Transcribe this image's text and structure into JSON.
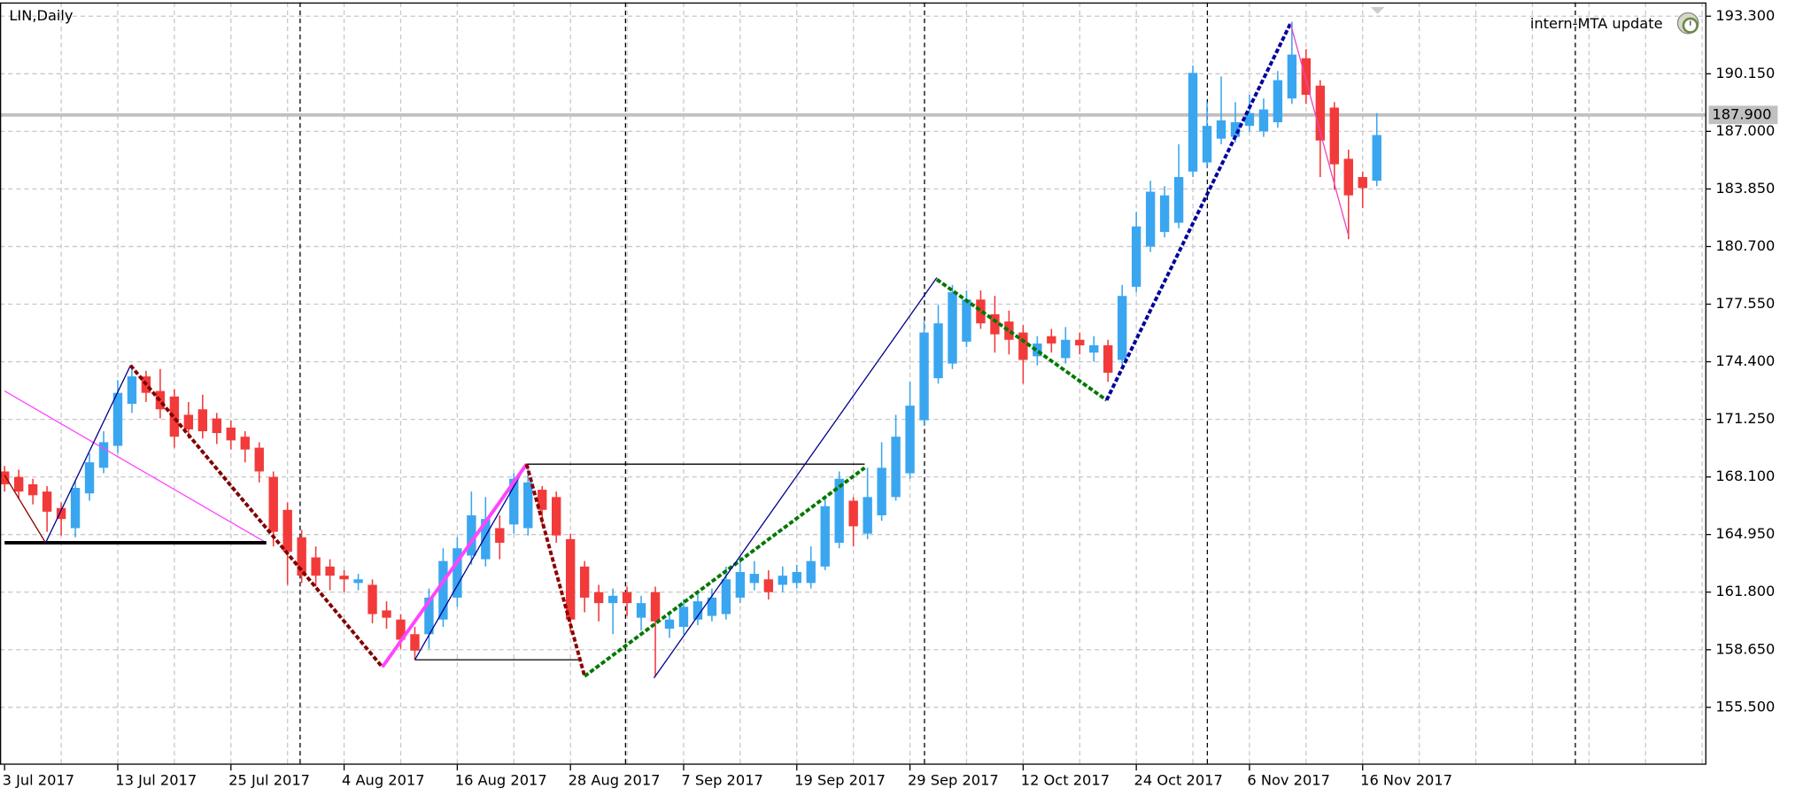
{
  "chart_data": {
    "type": "candlestick",
    "title": "LIN,Daily",
    "indicator_label": "intern-MTA update",
    "up_color": "#3aa6f0",
    "down_color": "#f23a3a",
    "grid": true,
    "xlim": [
      -0.325,
      120.3
    ],
    "ylim": [
      152.36,
      194.05
    ],
    "yticks": [
      {
        "value": 193.3,
        "label": "193.300"
      },
      {
        "value": 190.15,
        "label": "190.150"
      },
      {
        "value": 187,
        "label": "187.000"
      },
      {
        "value": 183.85,
        "label": "183.850"
      },
      {
        "value": 180.7,
        "label": "180.700"
      },
      {
        "value": 177.55,
        "label": "177.550"
      },
      {
        "value": 174.4,
        "label": "174.400"
      },
      {
        "value": 171.25,
        "label": "171.250"
      },
      {
        "value": 168.1,
        "label": "168.100"
      },
      {
        "value": 164.95,
        "label": "164.950"
      },
      {
        "value": 161.8,
        "label": "161.800"
      },
      {
        "value": 158.65,
        "label": "158.650"
      },
      {
        "value": 155.5,
        "label": "155.500"
      }
    ],
    "xticks": [
      {
        "value": 0,
        "label": "3 Jul 2017"
      },
      {
        "value": 8,
        "label": "13 Jul 2017"
      },
      {
        "value": 16,
        "label": "25 Jul 2017"
      },
      {
        "value": 24,
        "label": "4 Aug 2017"
      },
      {
        "value": 32,
        "label": "16 Aug 2017"
      },
      {
        "value": 40,
        "label": "28 Aug 2017"
      },
      {
        "value": 48,
        "label": "7 Sep 2017"
      },
      {
        "value": 56,
        "label": "19 Sep 2017"
      },
      {
        "value": 64,
        "label": "29 Sep 2017"
      },
      {
        "value": 72,
        "label": "12 Oct 2017"
      },
      {
        "value": 80,
        "label": "24 Oct 2017"
      },
      {
        "value": 88,
        "label": "6 Nov 2017"
      },
      {
        "value": 96,
        "label": "16 Nov 2017"
      }
    ],
    "last_price": {
      "value": 187.9,
      "label": "187.900"
    },
    "open": [
      168.4,
      168.1,
      167.7,
      167.3,
      166.4,
      165.3,
      167.2,
      168.6,
      169.8,
      172.1,
      173.6,
      172.8,
      172.5,
      171.5,
      171.8,
      171.3,
      170.8,
      170.3,
      169.7,
      168.1,
      166.3,
      164.8,
      163.7,
      163.2,
      162.7,
      162.3,
      162.2,
      160.8,
      160.3,
      159.5,
      159.5,
      160.3,
      161.5,
      163.8,
      163.6,
      165.3,
      165.5,
      165.3,
      167.4,
      167.0,
      164.7,
      163.2,
      161.8,
      161.2,
      161.8,
      160.4,
      161.8,
      159.8,
      159.9,
      160.3,
      160.5,
      160.6,
      161.5,
      162.3,
      162.5,
      162.2,
      162.3,
      162.3,
      163.2,
      164.5,
      166.8,
      165.0,
      166.0,
      167.0,
      168.3,
      171.2,
      173.5,
      174.3,
      175.5,
      177.8,
      177.0,
      176.6,
      176.0,
      174.7,
      175.8,
      174.6,
      175.6,
      174.9,
      175.3,
      174.5,
      178.5,
      180.7,
      181.5,
      182.0,
      184.8,
      185.3,
      186.6,
      186.7,
      187.3,
      187.0,
      187.5,
      188.8,
      191.0,
      189.5,
      188.3,
      185.5,
      184.5,
      184.3
    ],
    "high": [
      168.7,
      168.5,
      168.0,
      167.6,
      166.7,
      167.9,
      169.4,
      170.6,
      173.4,
      174.1,
      173.9,
      174.0,
      172.9,
      172.2,
      172.6,
      171.6,
      171.2,
      170.6,
      170.0,
      168.4,
      166.7,
      165.2,
      164.3,
      163.6,
      163.0,
      162.8,
      162.5,
      161.3,
      160.6,
      159.9,
      162.0,
      164.2,
      164.8,
      167.3,
      167.0,
      166.0,
      168.3,
      168.6,
      167.6,
      167.3,
      165.0,
      163.5,
      162.2,
      162.0,
      162.1,
      161.6,
      162.1,
      160.7,
      161.4,
      161.8,
      162.0,
      163.2,
      163.8,
      163.5,
      163.0,
      163.2,
      163.3,
      164.3,
      167.0,
      168.4,
      167.0,
      168.6,
      170.0,
      171.5,
      173.3,
      176.6,
      177.5,
      178.6,
      178.3,
      178.3,
      178.0,
      177.2,
      176.4,
      175.8,
      176.2,
      176.3,
      176.0,
      175.8,
      175.6,
      178.6,
      182.6,
      184.3,
      184.0,
      186.3,
      190.6,
      188.6,
      190.0,
      188.6,
      189.0,
      188.8,
      190.3,
      193.0,
      191.5,
      189.8,
      188.6,
      186.0,
      184.8,
      188.0
    ],
    "low": [
      167.3,
      166.9,
      166.6,
      165.1,
      164.9,
      164.8,
      166.8,
      168.3,
      169.4,
      171.6,
      172.2,
      171.3,
      169.7,
      170.2,
      170.2,
      169.9,
      169.6,
      168.9,
      167.8,
      164.3,
      162.2,
      162.3,
      162.1,
      161.9,
      161.8,
      161.9,
      160.1,
      159.8,
      158.7,
      158.1,
      158.7,
      159.9,
      161.0,
      163.3,
      163.2,
      163.6,
      165.0,
      164.9,
      165.5,
      164.5,
      159.6,
      160.7,
      160.2,
      159.5,
      160.5,
      159.7,
      157.2,
      159.3,
      159.5,
      160.0,
      160.2,
      160.3,
      161.2,
      161.9,
      161.4,
      161.8,
      162.0,
      162.0,
      163.0,
      164.2,
      164.3,
      164.7,
      165.7,
      166.8,
      168.0,
      170.9,
      173.2,
      174.0,
      175.2,
      176.2,
      174.9,
      174.8,
      173.2,
      174.2,
      174.9,
      174.3,
      174.8,
      174.4,
      173.3,
      174.2,
      178.2,
      180.4,
      181.2,
      181.7,
      184.5,
      185.0,
      186.3,
      186.4,
      187.0,
      186.7,
      187.2,
      188.5,
      188.5,
      184.5,
      183.8,
      181.1,
      182.8,
      184.0
    ],
    "close": [
      167.7,
      167.3,
      167.1,
      166.2,
      165.8,
      167.5,
      168.9,
      170.0,
      172.7,
      173.6,
      172.7,
      171.8,
      170.3,
      170.7,
      170.6,
      170.5,
      170.1,
      169.6,
      168.4,
      165.1,
      164.0,
      162.7,
      162.7,
      162.7,
      162.5,
      162.5,
      160.6,
      160.4,
      159.2,
      158.6,
      161.5,
      163.5,
      164.2,
      166.0,
      165.8,
      164.5,
      168.0,
      167.8,
      166.3,
      164.9,
      160.3,
      161.5,
      161.2,
      161.6,
      161.2,
      161.2,
      160.2,
      160.3,
      161.0,
      161.3,
      161.5,
      162.5,
      162.9,
      162.8,
      161.8,
      162.7,
      162.9,
      163.5,
      166.5,
      168.0,
      165.4,
      167.0,
      168.6,
      170.3,
      172.0,
      176.0,
      176.5,
      178.2,
      177.8,
      176.5,
      175.9,
      175.6,
      174.5,
      175.4,
      175.4,
      175.6,
      175.3,
      175.3,
      173.8,
      178.0,
      181.8,
      183.7,
      183.5,
      184.5,
      190.2,
      187.3,
      187.6,
      187.5,
      188.0,
      188.2,
      189.8,
      191.2,
      189.0,
      186.5,
      185.2,
      183.5,
      183.9,
      186.8
    ],
    "overlays": [
      {
        "color": "#ff44ff",
        "style": "thin",
        "points": [
          [
            0,
            172.8
          ],
          [
            18.5,
            164.5
          ]
        ]
      },
      {
        "color": "#000000",
        "style": "thick",
        "points": [
          [
            0,
            164.5
          ],
          [
            18.5,
            164.5
          ]
        ]
      },
      {
        "color": "#8b0000",
        "style": "thin",
        "points": [
          [
            0,
            168.2
          ],
          [
            2.9,
            164.5
          ]
        ]
      },
      {
        "color": "#00008b",
        "style": "thin",
        "points": [
          [
            2.9,
            164.5
          ],
          [
            8.9,
            174.2
          ]
        ]
      },
      {
        "color": "#800000",
        "style": "dashed",
        "points": [
          [
            8.9,
            174.2
          ],
          [
            26.7,
            157.7
          ]
        ]
      },
      {
        "color": "#000000",
        "style": "thin",
        "points": [
          [
            29,
            158.1
          ],
          [
            40.7,
            158.1
          ]
        ]
      },
      {
        "color": "#00008b",
        "style": "thin",
        "points": [
          [
            29,
            158.1
          ],
          [
            36.9,
            168.8
          ]
        ]
      },
      {
        "color": "#ff44ff",
        "style": "thick",
        "points": [
          [
            26.7,
            157.7
          ],
          [
            36.9,
            168.8
          ]
        ]
      },
      {
        "color": "#000000",
        "style": "thin",
        "points": [
          [
            36.9,
            168.8
          ],
          [
            60.8,
            168.8
          ]
        ]
      },
      {
        "color": "#8b0000",
        "style": "dashed",
        "points": [
          [
            36.9,
            168.8
          ],
          [
            41,
            157.2
          ]
        ]
      },
      {
        "color": "#007700",
        "style": "dashed",
        "points": [
          [
            41,
            157.2
          ],
          [
            60.8,
            168.6
          ]
        ]
      },
      {
        "color": "#00008b",
        "style": "thin",
        "points": [
          [
            45.9,
            157.1
          ],
          [
            65.9,
            179.0
          ]
        ]
      },
      {
        "color": "#007700",
        "style": "dashed",
        "points": [
          [
            65.9,
            178.9
          ],
          [
            77.9,
            172.3
          ]
        ]
      },
      {
        "color": "#000099",
        "style": "dashed",
        "points": [
          [
            77.9,
            172.3
          ],
          [
            90.9,
            192.9
          ]
        ]
      },
      {
        "color": "#ee44bb",
        "style": "thin",
        "points": [
          [
            90.9,
            192.9
          ],
          [
            95,
            181.3
          ]
        ]
      }
    ]
  }
}
